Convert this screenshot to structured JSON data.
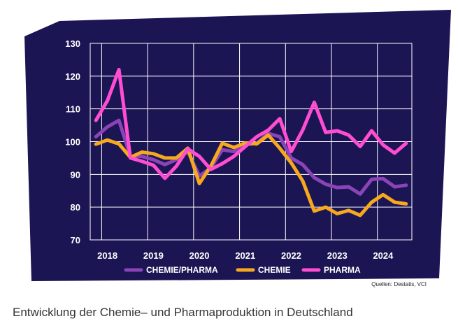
{
  "colors": {
    "panel_bg": "#1b1554",
    "grid": "#ffffff",
    "chemie_pharma": "#8b44b8",
    "chemie": "#f6a91d",
    "pharma": "#ff4dd2"
  },
  "caption": "Entwicklung der Chemie– und Pharmaproduktion in Deutschland",
  "source": "Quellen: Destatis, VCI",
  "chart_data": {
    "type": "line",
    "title": "",
    "xlabel": "",
    "ylabel": "",
    "ylim": [
      70,
      130
    ],
    "yticks": [
      70,
      80,
      90,
      100,
      110,
      120,
      130
    ],
    "xlim": [
      2017.75,
      2024.75
    ],
    "xticks": [
      {
        "label": "2018",
        "x": 2018.125
      },
      {
        "label": "2019",
        "x": 2019.125
      },
      {
        "label": "2020",
        "x": 2020.125
      },
      {
        "label": "2021",
        "x": 2021.125
      },
      {
        "label": "2022",
        "x": 2022.125
      },
      {
        "label": "2023",
        "x": 2023.125
      },
      {
        "label": "2024",
        "x": 2024.125
      }
    ],
    "grid": true,
    "legend_position": "bottom",
    "x": [
      2017.875,
      2018.125,
      2018.375,
      2018.625,
      2018.875,
      2019.125,
      2019.375,
      2019.625,
      2019.875,
      2020.125,
      2020.375,
      2020.625,
      2020.875,
      2021.125,
      2021.375,
      2021.625,
      2021.875,
      2022.125,
      2022.375,
      2022.625,
      2022.875,
      2023.125,
      2023.375,
      2023.625,
      2023.875,
      2024.125,
      2024.375,
      2024.625
    ],
    "series": [
      {
        "name": "CHEMIE/PHARMA",
        "color_key": "chemie_pharma",
        "values": [
          101.5,
          104.5,
          106.5,
          95.5,
          95.5,
          94.5,
          93.0,
          94.5,
          97.0,
          89.5,
          92.0,
          97.5,
          97.0,
          99.0,
          99.5,
          102.5,
          101.5,
          95.0,
          93.0,
          89.0,
          87.0,
          86.0,
          86.2,
          84.0,
          88.5,
          88.7,
          86.2,
          86.7
        ]
      },
      {
        "name": "CHEMIE",
        "color_key": "chemie",
        "values": [
          99.2,
          100.5,
          99.3,
          95.2,
          96.8,
          96.3,
          95.0,
          95.0,
          98.0,
          87.2,
          92.5,
          99.5,
          98.2,
          99.6,
          99.3,
          102.0,
          98.0,
          93.5,
          88.0,
          78.8,
          80.0,
          78.0,
          79.0,
          77.5,
          81.5,
          83.8,
          81.5,
          81.0
        ]
      },
      {
        "name": "PHARMA",
        "color_key": "pharma",
        "values": [
          106.5,
          112.5,
          122.0,
          95.0,
          94.0,
          92.8,
          88.8,
          92.5,
          97.8,
          95.5,
          91.5,
          93.3,
          95.5,
          98.5,
          101.5,
          103.5,
          107.0,
          97.0,
          103.5,
          112.0,
          102.8,
          103.3,
          102.0,
          98.5,
          103.3,
          99.0,
          96.5,
          99.5
        ]
      }
    ]
  }
}
